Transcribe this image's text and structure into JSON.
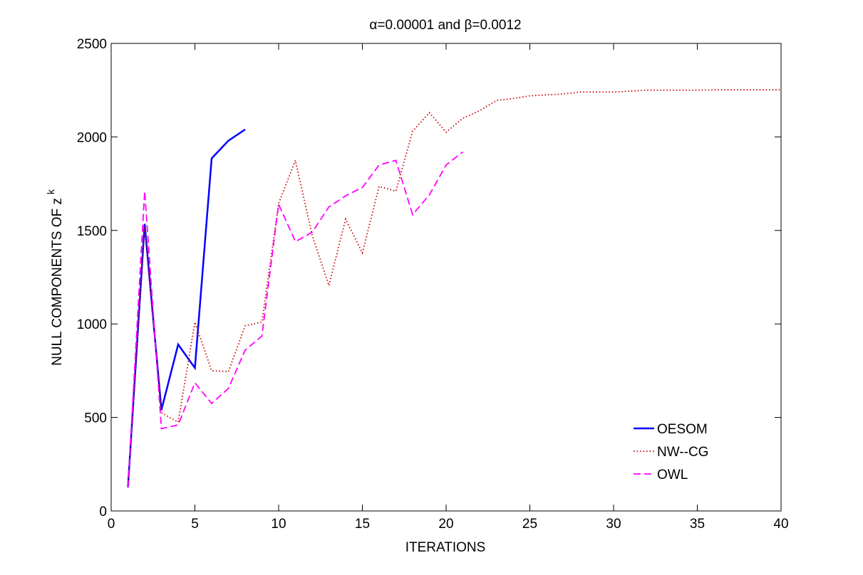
{
  "chart_data": {
    "type": "line",
    "title": "α=0.00001 and β=0.0012",
    "xlabel": "ITERATIONS",
    "ylabel_main": "NULL COMPONENTS OF z",
    "ylabel_sup": "k",
    "xlim": [
      0,
      40
    ],
    "ylim": [
      0,
      2500
    ],
    "xticks": [
      0,
      5,
      10,
      15,
      20,
      25,
      30,
      35,
      40
    ],
    "yticks": [
      0,
      500,
      1000,
      1500,
      2000,
      2500
    ],
    "grid": false,
    "legend_position": "bottom-right",
    "series": [
      {
        "name": "OESOM",
        "color": "#0000ff",
        "style": "solid",
        "x": [
          1,
          2,
          3,
          4,
          5,
          6,
          7,
          8
        ],
        "y": [
          125,
          1535,
          540,
          890,
          765,
          1885,
          1980,
          2040
        ]
      },
      {
        "name": "NW--CG",
        "color": "#cc0000",
        "style": "dotted",
        "x": [
          1,
          2,
          3,
          4,
          5,
          6,
          7,
          8,
          9,
          10,
          11,
          12,
          13,
          14,
          15,
          16,
          17,
          18,
          19,
          20,
          21,
          22,
          23,
          24,
          25,
          26,
          27,
          28,
          29,
          30,
          31,
          32,
          33,
          34,
          35,
          36,
          37,
          38,
          39,
          40
        ],
        "y": [
          125,
          1520,
          525,
          475,
          1010,
          750,
          745,
          990,
          1010,
          1645,
          1875,
          1475,
          1205,
          1560,
          1380,
          1735,
          1710,
          2030,
          2130,
          2025,
          2100,
          2140,
          2195,
          2205,
          2220,
          2225,
          2230,
          2240,
          2240,
          2240,
          2245,
          2250,
          2250,
          2250,
          2250,
          2252,
          2252,
          2252,
          2252,
          2252
        ]
      },
      {
        "name": "OWL",
        "color": "#ff00ff",
        "style": "dashed",
        "x": [
          1,
          2,
          3,
          4,
          5,
          6,
          7,
          8,
          9,
          10,
          11,
          12,
          13,
          14,
          15,
          16,
          17,
          18,
          19,
          20,
          21
        ],
        "y": [
          125,
          1710,
          440,
          460,
          685,
          575,
          655,
          860,
          935,
          1640,
          1440,
          1490,
          1625,
          1685,
          1730,
          1850,
          1875,
          1585,
          1690,
          1850,
          1920
        ]
      }
    ]
  }
}
